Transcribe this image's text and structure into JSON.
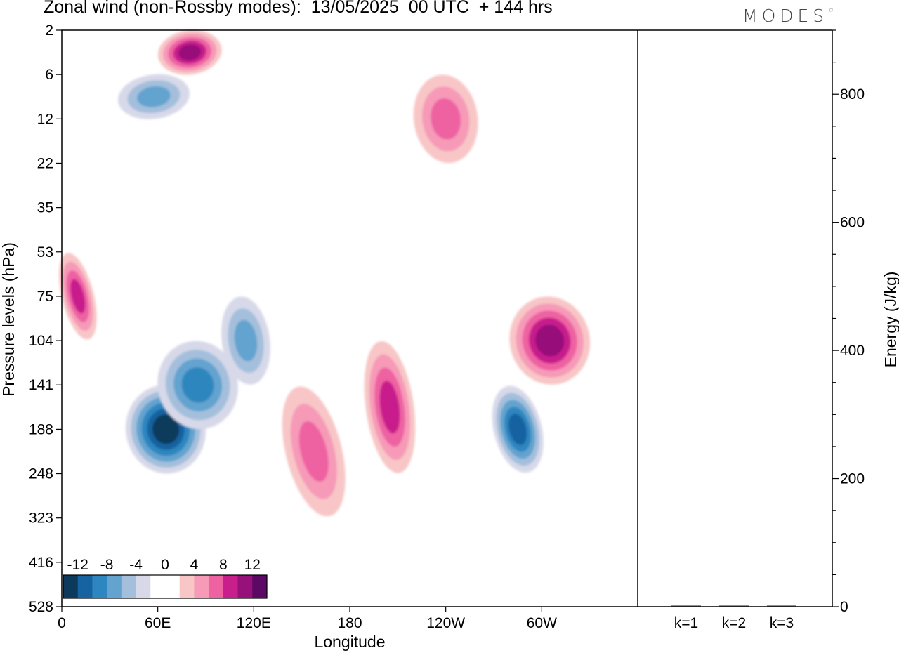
{
  "title": "Zonal wind (non-Rossby modes):  13/05/2025  00 UTC  + 144 hrs",
  "brand": "MODES",
  "brand_mark": "©",
  "chart_data": [
    {
      "type": "heatmap",
      "title": "Zonal wind (non-Rossby modes):  13/05/2025  00 UTC  + 144 hrs",
      "xlabel": "Longitude",
      "ylabel": "Pressure levels (hPa)",
      "x_ticks": [
        "0",
        "60E",
        "120E",
        "180",
        "120W",
        "60W"
      ],
      "x_tick_values": [
        0,
        60,
        120,
        180,
        240,
        300
      ],
      "xlim": [
        0,
        360
      ],
      "y_ticks": [
        "2",
        "6",
        "12",
        "22",
        "35",
        "53",
        "75",
        "104",
        "141",
        "188",
        "248",
        "323",
        "416",
        "528"
      ],
      "y_scale": "pressure levels (inverted, top = 2 hPa)",
      "colorbar": {
        "labels": [
          "-12",
          "-8",
          "-4",
          "0",
          "4",
          "8",
          "12"
        ],
        "colors": [
          "#0d3a5c",
          "#1762a0",
          "#2d86bf",
          "#64a3cf",
          "#a4bfdc",
          "#d7d9e9",
          "#ffffff",
          "#ffffff",
          "#f8c6c6",
          "#f69ab8",
          "#ee62a2",
          "#c81f8c",
          "#97117a",
          "#5c0865"
        ],
        "placement": "bottom-left"
      },
      "regions": [
        {
          "sign": "negative",
          "lon": [
            40,
            90
          ],
          "level": [
            141,
            248
          ],
          "peak": -12
        },
        {
          "sign": "negative",
          "lon": [
            60,
            110
          ],
          "level": [
            104,
            188
          ],
          "peak": -8
        },
        {
          "sign": "negative",
          "lon": [
            100,
            130
          ],
          "level": [
            75,
            141
          ],
          "peak": -6
        },
        {
          "sign": "negative",
          "lon": [
            270,
            300
          ],
          "level": [
            141,
            248
          ],
          "peak": -10
        },
        {
          "sign": "negative",
          "lon": [
            35,
            80
          ],
          "level": [
            6,
            12
          ],
          "peak": -6
        },
        {
          "sign": "positive",
          "lon": [
            140,
            175
          ],
          "level": [
            141,
            323
          ],
          "peak": 6
        },
        {
          "sign": "positive",
          "lon": [
            190,
            220
          ],
          "level": [
            104,
            248
          ],
          "peak": 8
        },
        {
          "sign": "positive",
          "lon": [
            280,
            330
          ],
          "level": [
            75,
            141
          ],
          "peak": 10
        },
        {
          "sign": "positive",
          "lon": [
            60,
            100
          ],
          "level": [
            2,
            6
          ],
          "peak": 10
        },
        {
          "sign": "positive",
          "lon": [
            0,
            20
          ],
          "level": [
            53,
            104
          ],
          "peak": 8
        },
        {
          "sign": "positive",
          "lon": [
            220,
            260
          ],
          "level": [
            6,
            22
          ],
          "peak": 6
        }
      ]
    },
    {
      "type": "bar",
      "ylabel": "Energy (J/kg)",
      "categories": [
        "k=1",
        "k=2",
        "k=3"
      ],
      "values": [
        1,
        1,
        1
      ],
      "ylim": [
        0,
        900
      ],
      "y_ticks": [
        0,
        200,
        400,
        600,
        800
      ]
    }
  ]
}
